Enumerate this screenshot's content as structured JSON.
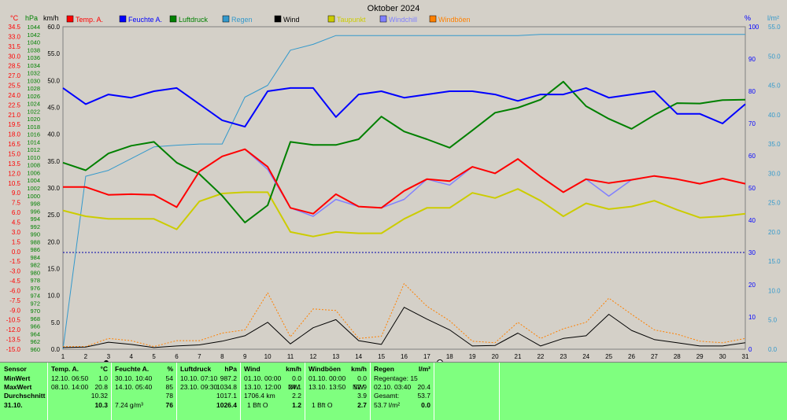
{
  "title": "Oktober 2024",
  "units": {
    "celsius": "°C",
    "hpa": "hPa",
    "kmh": "km/h",
    "percent": "%",
    "lm2": "l/m²"
  },
  "legend": [
    {
      "label": "Temp. A.",
      "color": "#ff0000"
    },
    {
      "label": "Feuchte A.",
      "color": "#0000ff"
    },
    {
      "label": "Luftdruck",
      "color": "#008000"
    },
    {
      "label": "Regen",
      "color": "#3399cc"
    },
    {
      "label": "Wind",
      "color": "#000000"
    },
    {
      "label": "Taupunkt",
      "color": "#cccc00"
    },
    {
      "label": "Windchill",
      "color": "#8080ff"
    },
    {
      "label": "Windböen",
      "color": "#ff8000"
    }
  ],
  "axes": {
    "celsius_ticks": [
      "34.5",
      "33.0",
      "31.5",
      "30.0",
      "28.5",
      "27.0",
      "25.5",
      "24.0",
      "22.5",
      "21.0",
      "19.5",
      "18.0",
      "16.5",
      "15.0",
      "13.5",
      "12.0",
      "10.5",
      "9.0",
      "7.5",
      "6.0",
      "4.5",
      "3.0",
      "1.5",
      "0.0",
      "-1.5",
      "-3.0",
      "-4.5",
      "-6.0",
      "-7.5",
      "-9.0",
      "-10.5",
      "-12.0",
      "-13.5",
      "-15.0"
    ],
    "hpa_ticks": [
      "1044",
      "1042",
      "1040",
      "1038",
      "1036",
      "1034",
      "1032",
      "1030",
      "1028",
      "1026",
      "1024",
      "1022",
      "1020",
      "1018",
      "1016",
      "1014",
      "1012",
      "1010",
      "1008",
      "1006",
      "1004",
      "1002",
      "1000",
      "998",
      "996",
      "994",
      "992",
      "990",
      "988",
      "986",
      "984",
      "982",
      "980",
      "978",
      "976",
      "974",
      "972",
      "970",
      "968",
      "966",
      "964",
      "962",
      "960"
    ],
    "kmh_ticks": [
      "60.0",
      "55.0",
      "50.0",
      "45.0",
      "40.0",
      "35.0",
      "30.0",
      "25.0",
      "20.0",
      "15.0",
      "10.0",
      "5.0",
      "0.0"
    ],
    "percent_ticks": [
      "100",
      "90",
      "80",
      "70",
      "60",
      "50",
      "40",
      "30",
      "20",
      "10",
      "0"
    ],
    "lm2_ticks": [
      "55.0",
      "50.0",
      "45.0",
      "40.0",
      "35.0",
      "30.0",
      "25.0",
      "20.0",
      "15.0",
      "10.0",
      "5.0",
      "0.0"
    ],
    "x_ticks": [
      "1",
      "2",
      "3",
      "4",
      "5",
      "6",
      "7",
      "8",
      "9",
      "10",
      "11",
      "12",
      "13",
      "14",
      "15",
      "16",
      "17",
      "18",
      "19",
      "20",
      "21",
      "22",
      "23",
      "24",
      "25",
      "26",
      "27",
      "28",
      "29",
      "30",
      "31"
    ]
  },
  "chart_data": {
    "type": "line",
    "title": "Oktober 2024",
    "x": [
      1,
      2,
      3,
      4,
      5,
      6,
      7,
      8,
      9,
      10,
      11,
      12,
      13,
      14,
      15,
      16,
      17,
      18,
      19,
      20,
      21,
      22,
      23,
      24,
      25,
      26,
      27,
      28,
      29,
      30,
      31
    ],
    "ylim_kmh": [
      0,
      60
    ],
    "grid": false,
    "legend_position": "top",
    "series": [
      {
        "name": "Temp. A.",
        "axis": "celsius",
        "color": "#ff0000",
        "values": [
          9.9,
          9.9,
          8.7,
          8.8,
          8.7,
          6.8,
          12.3,
          14.6,
          15.7,
          13.0,
          6.7,
          5.8,
          8.8,
          6.9,
          6.7,
          9.3,
          11.1,
          10.8,
          13.0,
          12.0,
          14.2,
          11.5,
          9.1,
          11.1,
          10.5,
          11.0,
          11.6,
          11.1,
          10.4,
          11.2,
          10.4
        ]
      },
      {
        "name": "Feuchte A.",
        "axis": "percent",
        "color": "#0000ff",
        "values": [
          81,
          76,
          79,
          78,
          80,
          81,
          76,
          71,
          69,
          80,
          81,
          81,
          72,
          79,
          80,
          78,
          79,
          80,
          80,
          79,
          77,
          79,
          79,
          81,
          78,
          79,
          80,
          73,
          73,
          70,
          76
        ]
      },
      {
        "name": "Luftdruck",
        "axis": "hpa",
        "color": "#008000",
        "values": [
          1008.6,
          1006.6,
          1011.0,
          1013.0,
          1014.0,
          1008.6,
          1005.6,
          1000.0,
          993.0,
          997.5,
          1014.0,
          1013.2,
          1013.2,
          1014.7,
          1020.6,
          1016.7,
          1014.7,
          1012.5,
          1017.0,
          1021.6,
          1022.9,
          1025.0,
          1029.7,
          1023.3,
          1020.0,
          1017.4,
          1021.0,
          1024.1,
          1024.0,
          1024.9,
          1025.0
        ]
      },
      {
        "name": "Regen",
        "axis": "lm2",
        "color": "#3399cc",
        "values": [
          0.0,
          29.5,
          30.5,
          32.5,
          34.5,
          34.8,
          35.0,
          35.0,
          43.0,
          45.0,
          51.0,
          52.0,
          53.5,
          53.5,
          53.5,
          53.5,
          53.5,
          53.5,
          53.5,
          53.5,
          53.5,
          53.7,
          53.7,
          53.7,
          53.7,
          53.7,
          53.7,
          53.7,
          53.7,
          53.7,
          53.7
        ]
      },
      {
        "name": "Wind",
        "axis": "kmh",
        "color": "#000000",
        "values": [
          0.3,
          0.4,
          1.3,
          0.9,
          0.3,
          0.6,
          0.8,
          1.5,
          2.5,
          5.0,
          1.0,
          4.0,
          5.5,
          1.6,
          0.9,
          7.8,
          5.6,
          3.6,
          0.6,
          0.7,
          3.0,
          0.6,
          2.0,
          2.5,
          6.5,
          3.5,
          1.8,
          1.2,
          0.6,
          0.6,
          1.2
        ]
      },
      {
        "name": "Taupunkt",
        "axis": "celsius",
        "color": "#cccc00",
        "values": [
          6.3,
          5.4,
          5.0,
          5.0,
          5.0,
          3.4,
          7.7,
          8.9,
          9.1,
          9.1,
          3.0,
          2.3,
          3.0,
          2.8,
          2.8,
          5.0,
          6.7,
          6.7,
          9.0,
          8.2,
          9.6,
          7.8,
          5.4,
          7.4,
          6.5,
          6.9,
          7.8,
          6.4,
          5.2,
          5.4,
          5.8
        ]
      },
      {
        "name": "Windchill",
        "axis": "celsius",
        "color": "#8080ff",
        "values": [
          9.9,
          9.9,
          8.7,
          8.8,
          8.7,
          6.8,
          12.3,
          14.6,
          15.7,
          12.6,
          6.7,
          5.4,
          8.0,
          6.9,
          6.7,
          8.0,
          11.1,
          10.2,
          13.0,
          12.0,
          14.2,
          11.5,
          9.1,
          11.1,
          8.5,
          11.0,
          11.6,
          11.1,
          10.4,
          11.2,
          10.4
        ]
      },
      {
        "name": "Windböen",
        "axis": "kmh",
        "color": "#ff8000",
        "values": [
          0.5,
          0.5,
          2.0,
          1.6,
          0.5,
          1.6,
          1.6,
          3.0,
          3.6,
          10.5,
          2.3,
          7.5,
          7.2,
          2.0,
          2.4,
          12.2,
          8.0,
          5.3,
          1.5,
          1.2,
          5.0,
          2.0,
          3.8,
          5.0,
          9.5,
          6.5,
          3.6,
          2.8,
          1.5,
          1.2,
          2.0
        ]
      }
    ],
    "reference_line": {
      "axis": "percent",
      "value": 30
    }
  },
  "table": {
    "sensor": {
      "header": "Sensor",
      "min": "MinWert",
      "max": "MaxWert",
      "avg": "Durchschnitt",
      "date": "31.10."
    },
    "temp": {
      "header": "Temp. A.",
      "unit": "°C",
      "min_time": "12.10.  06:50",
      "min": "1.0",
      "max_time": "08.10.  14:00",
      "max": "20.8",
      "avg": "10.32",
      "current": "10.3"
    },
    "feuchte": {
      "header": "Feuchte A.",
      "unit": "%",
      "min_time": "30.10.  10:40",
      "min": "54",
      "max_time": "14.10.  05:40",
      "max": "85",
      "avg": "78",
      "abs": "7.24 g/m³",
      "current": "76"
    },
    "luftdruck": {
      "header": "Luftdruck",
      "unit": "hPa",
      "min_time": "10.10.  07:10",
      "min": "987.2",
      "max_time": "23.10.  09:30",
      "max": "1034.8",
      "avg": "1017.1",
      "current": "1026.4"
    },
    "wind": {
      "header": "Wind",
      "unit": "km/h",
      "min_time": "01.10.  00:00",
      "min": "0.0",
      "max_time": "13.10.  12:00",
      "max_dir": "NW",
      "max": "24.1",
      "dist": "1706.4 km",
      "avg": "2.2",
      "bft": "1 Bft O",
      "current": "1.2"
    },
    "boeen": {
      "header": "Windböen",
      "unit": "km/h",
      "min_time": "01.10.  00:00",
      "min": "0.0",
      "max_time": "13.10.  13:50",
      "max_dir": "NW",
      "max": "52.9",
      "avg": "3.9",
      "bft": "1 Bft O",
      "current": "2.7"
    },
    "regen": {
      "header": "Regen",
      "unit": "l/m²",
      "tage": "Regentage: 15",
      "max_time": "02.10.  03:40",
      "max": "20.4",
      "gesamt_label": "Gesamt:",
      "gesamt": "53.7",
      "sum": "53.7 l/m²",
      "current": "0.0"
    }
  }
}
